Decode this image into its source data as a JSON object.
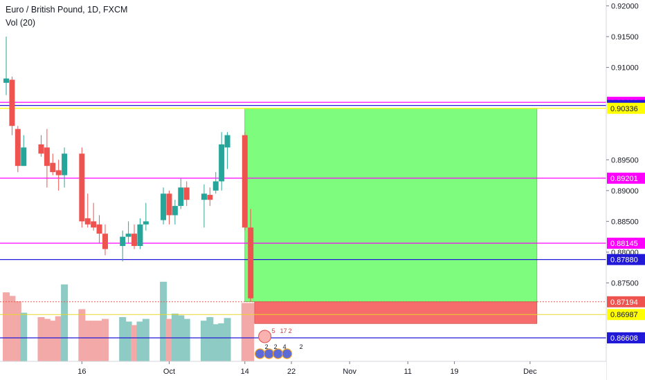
{
  "header": {
    "title": "Euro / British Pound, 1D, FXCM",
    "volume_indicator": "Vol (20)"
  },
  "colors": {
    "up": "#26a69a",
    "down": "#ef5350",
    "vol_up": "#8fcbc5",
    "vol_down": "#f2a9a7",
    "magenta": "#ff00ff",
    "blue": "#2118d8",
    "yellow": "#f5e642",
    "profit_zone": "#7dfc7d",
    "stop_zone": "#f66b6b",
    "axis_text": "#131722"
  },
  "chart_data": {
    "type": "candlestick",
    "title": "Euro / British Pound, 1D, FXCM",
    "ylim": [
      0.8635,
      0.9205
    ],
    "y_ticks": [
      "0.92000",
      "0.91500",
      "0.91000",
      "0.89500",
      "0.89000",
      "0.88500",
      "0.88000",
      "0.87500"
    ],
    "x_ticks": [
      "16",
      "Oct",
      "14",
      "22",
      "Nov",
      "11",
      "19",
      "Dec"
    ],
    "candles": [
      {
        "date": "2019-09-03",
        "open": 0.9075,
        "high": 0.915,
        "low": 0.9055,
        "close": 0.9082
      },
      {
        "date": "2019-09-04",
        "open": 0.908,
        "high": 0.9085,
        "low": 0.899,
        "close": 0.9005
      },
      {
        "date": "2019-09-05",
        "open": 0.9,
        "high": 0.9005,
        "low": 0.893,
        "close": 0.894
      },
      {
        "date": "2019-09-06",
        "open": 0.894,
        "high": 0.899,
        "low": 0.894,
        "close": 0.897
      },
      {
        "date": "2019-09-09",
        "open": 0.8975,
        "high": 0.899,
        "low": 0.8955,
        "close": 0.896
      },
      {
        "date": "2019-09-10",
        "open": 0.897,
        "high": 0.9,
        "low": 0.8905,
        "close": 0.894
      },
      {
        "date": "2019-09-11",
        "open": 0.8945,
        "high": 0.896,
        "low": 0.8925,
        "close": 0.893
      },
      {
        "date": "2019-09-12",
        "open": 0.8933,
        "high": 0.895,
        "low": 0.89,
        "close": 0.8925
      },
      {
        "date": "2019-09-13",
        "open": 0.8925,
        "high": 0.897,
        "low": 0.8905,
        "close": 0.896
      },
      {
        "date": "2019-09-16",
        "open": 0.896,
        "high": 0.897,
        "low": 0.884,
        "close": 0.885
      },
      {
        "date": "2019-09-17",
        "open": 0.8855,
        "high": 0.8895,
        "low": 0.884,
        "close": 0.8845
      },
      {
        "date": "2019-09-18",
        "open": 0.885,
        "high": 0.888,
        "low": 0.8835,
        "close": 0.884
      },
      {
        "date": "2019-09-19",
        "open": 0.8845,
        "high": 0.886,
        "low": 0.8815,
        "close": 0.883
      },
      {
        "date": "2019-09-20",
        "open": 0.883,
        "high": 0.8845,
        "low": 0.8795,
        "close": 0.8805
      },
      {
        "date": "2019-09-23",
        "open": 0.881,
        "high": 0.8835,
        "low": 0.8785,
        "close": 0.8825
      },
      {
        "date": "2019-09-24",
        "open": 0.8825,
        "high": 0.885,
        "low": 0.8815,
        "close": 0.883
      },
      {
        "date": "2019-09-25",
        "open": 0.883,
        "high": 0.8845,
        "low": 0.8805,
        "close": 0.881
      },
      {
        "date": "2019-09-26",
        "open": 0.881,
        "high": 0.8855,
        "low": 0.8805,
        "close": 0.8845
      },
      {
        "date": "2019-09-27",
        "open": 0.8845,
        "high": 0.888,
        "low": 0.8835,
        "close": 0.885
      },
      {
        "date": "2019-09-30",
        "open": 0.8852,
        "high": 0.8905,
        "low": 0.8845,
        "close": 0.8895
      },
      {
        "date": "2019-10-01",
        "open": 0.8895,
        "high": 0.89,
        "low": 0.8845,
        "close": 0.886
      },
      {
        "date": "2019-10-02",
        "open": 0.886,
        "high": 0.8885,
        "low": 0.8845,
        "close": 0.8875
      },
      {
        "date": "2019-10-03",
        "open": 0.8875,
        "high": 0.892,
        "low": 0.887,
        "close": 0.8905
      },
      {
        "date": "2019-10-04",
        "open": 0.8905,
        "high": 0.8915,
        "low": 0.8875,
        "close": 0.8885
      },
      {
        "date": "2019-10-07",
        "open": 0.8885,
        "high": 0.891,
        "low": 0.884,
        "close": 0.8895
      },
      {
        "date": "2019-10-08",
        "open": 0.8893,
        "high": 0.8905,
        "low": 0.8875,
        "close": 0.8885
      },
      {
        "date": "2019-10-09",
        "open": 0.89,
        "high": 0.893,
        "low": 0.8895,
        "close": 0.8915
      },
      {
        "date": "2019-10-10",
        "open": 0.8915,
        "high": 0.8995,
        "low": 0.89,
        "close": 0.8975
      },
      {
        "date": "2019-10-11",
        "open": 0.897,
        "high": 0.8995,
        "low": 0.8935,
        "close": 0.899
      },
      {
        "date": "2019-10-14",
        "open": 0.899,
        "high": 0.8995,
        "low": 0.8835,
        "close": 0.884
      },
      {
        "date": "2019-10-15",
        "open": 0.884,
        "high": 0.887,
        "low": 0.872,
        "close": 0.8725
      }
    ],
    "volume": [
      {
        "date": "2019-09-03",
        "value": 0.78,
        "direction": "down"
      },
      {
        "date": "2019-09-04",
        "value": 0.74,
        "direction": "down"
      },
      {
        "date": "2019-09-05",
        "value": 0.68,
        "direction": "down"
      },
      {
        "date": "2019-09-06",
        "value": 0.55,
        "direction": "up"
      },
      {
        "date": "2019-09-09",
        "value": 0.5,
        "direction": "down"
      },
      {
        "date": "2019-09-10",
        "value": 0.48,
        "direction": "down"
      },
      {
        "date": "2019-09-11",
        "value": 0.46,
        "direction": "down"
      },
      {
        "date": "2019-09-12",
        "value": 0.51,
        "direction": "down"
      },
      {
        "date": "2019-09-13",
        "value": 0.87,
        "direction": "up"
      },
      {
        "date": "2019-09-16",
        "value": 0.59,
        "direction": "down"
      },
      {
        "date": "2019-09-17",
        "value": 0.46,
        "direction": "down"
      },
      {
        "date": "2019-09-18",
        "value": 0.46,
        "direction": "down"
      },
      {
        "date": "2019-09-19",
        "value": 0.46,
        "direction": "down"
      },
      {
        "date": "2019-09-20",
        "value": 0.48,
        "direction": "down"
      },
      {
        "date": "2019-09-23",
        "value": 0.5,
        "direction": "up"
      },
      {
        "date": "2019-09-24",
        "value": 0.45,
        "direction": "up"
      },
      {
        "date": "2019-09-25",
        "value": 0.41,
        "direction": "down"
      },
      {
        "date": "2019-09-26",
        "value": 0.45,
        "direction": "up"
      },
      {
        "date": "2019-09-27",
        "value": 0.48,
        "direction": "up"
      },
      {
        "date": "2019-09-30",
        "value": 0.9,
        "direction": "up"
      },
      {
        "date": "2019-10-01",
        "value": 0.48,
        "direction": "down"
      },
      {
        "date": "2019-10-02",
        "value": 0.54,
        "direction": "up"
      },
      {
        "date": "2019-10-03",
        "value": 0.52,
        "direction": "up"
      },
      {
        "date": "2019-10-04",
        "value": 0.48,
        "direction": "up"
      },
      {
        "date": "2019-10-07",
        "value": 0.46,
        "direction": "up"
      },
      {
        "date": "2019-10-08",
        "value": 0.5,
        "direction": "up"
      },
      {
        "date": "2019-10-09",
        "value": 0.42,
        "direction": "up"
      },
      {
        "date": "2019-10-10",
        "value": 0.43,
        "direction": "up"
      },
      {
        "date": "2019-10-11",
        "value": 0.49,
        "direction": "up"
      },
      {
        "date": "2019-10-14",
        "value": 0.66,
        "direction": "down"
      },
      {
        "date": "2019-10-15",
        "value": 0.66,
        "direction": "down"
      }
    ],
    "horizontal_levels": [
      {
        "price": 0.90433,
        "label": "0.90433",
        "color": "#ff00ff",
        "text": "#ffffff"
      },
      {
        "price": 0.90382,
        "label": "0.90382",
        "color": "#2118d8",
        "text": "#ffffff"
      },
      {
        "price": 0.90336,
        "label": "0.90336",
        "color": "#ffff00",
        "text": "#131722"
      },
      {
        "price": 0.89201,
        "label": "0.89201",
        "color": "#ff00ff",
        "text": "#ffffff"
      },
      {
        "price": 0.88145,
        "label": "0.88145",
        "color": "#ff00ff",
        "text": "#ffffff"
      },
      {
        "price": 0.8788,
        "label": "0.87880",
        "color": "#2118d8",
        "text": "#ffffff"
      },
      {
        "price": 0.86608,
        "label": "0.86608",
        "color": "#2118d8",
        "text": "#ffffff"
      }
    ],
    "price_markers": [
      {
        "price": 0.87194,
        "label": "0.87194",
        "color": "#ef5350",
        "text": "#ffffff"
      },
      {
        "price": 0.86987,
        "label": "0.86987",
        "color": "#ffff00",
        "text": "#131722"
      }
    ],
    "position_tool": {
      "start_date": "2019-10-14",
      "end_date": "2019-12-02",
      "entry": 0.87194,
      "target": 0.90336,
      "stop": 0.8684
    },
    "event_markers": {
      "top_row": [
        "5",
        "17",
        "2"
      ],
      "bottom_row": [
        "2",
        "2",
        "4",
        "2"
      ]
    }
  }
}
